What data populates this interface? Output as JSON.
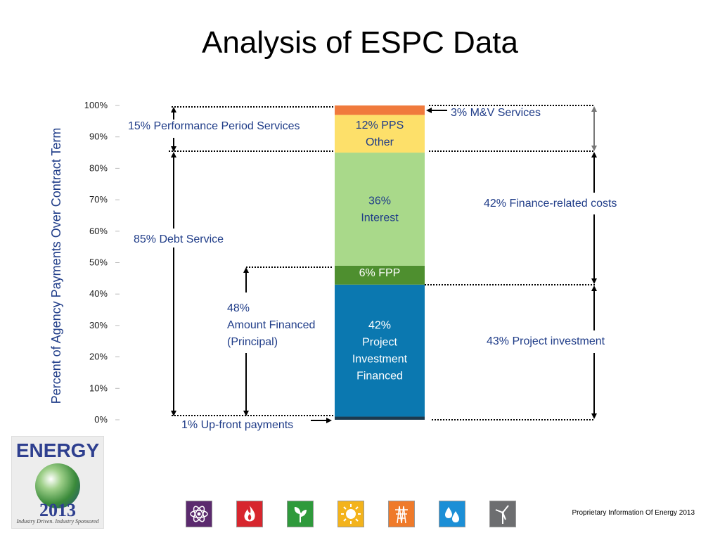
{
  "slide": {
    "title": "Analysis of ESPC Data",
    "footer": "Proprietary Information Of Energy 2013"
  },
  "logo": {
    "top_text": "ENERGY",
    "year_text": "2013",
    "tagline": "Industry Driven. Industry Sponsored"
  },
  "icons": [
    "atom-icon",
    "flame-icon",
    "leaf-icon",
    "sun-icon",
    "power-grid-icon",
    "water-drops-icon",
    "wind-turbine-icon"
  ],
  "chart_data": {
    "type": "bar",
    "stacked": true,
    "ylabel": "Percent of Agency Payments Over Contract Term",
    "ylim": [
      0,
      100
    ],
    "yticks": [
      "0%",
      "10%",
      "20%",
      "30%",
      "40%",
      "50%",
      "60%",
      "70%",
      "80%",
      "90%",
      "100%"
    ],
    "segments": [
      {
        "name": "Up-front payments",
        "value": 1,
        "label": "",
        "color": "#1c3a4f",
        "text_color": "#ffffff"
      },
      {
        "name": "Project Investment Financed",
        "value": 42,
        "label": "42%\nProject\nInvestment\nFinanced",
        "color": "#0b78b0",
        "text_color": "#ffffff"
      },
      {
        "name": "FPP",
        "value": 6,
        "label": "6% FPP",
        "color": "#4e8f2f",
        "text_color": "#ffffff"
      },
      {
        "name": "Interest",
        "value": 36,
        "label": "36%\nInterest",
        "color": "#a9d98a",
        "text_color": "#1f3c88"
      },
      {
        "name": "PPS Other",
        "value": 12,
        "label": "12% PPS\nOther",
        "color": "#fde06a",
        "text_color": "#1f3c88"
      },
      {
        "name": "M&V Services",
        "value": 3,
        "label": "",
        "color": "#f07a3c",
        "text_color": "#ffffff"
      }
    ],
    "annotations": {
      "performance_period": "15% Performance Period Services",
      "debt_service": "85% Debt Service",
      "amount_financed": "48%\nAmount Financed\n(Principal)",
      "upfront": "1% Up-front payments",
      "mv_services": "3% M&V Services",
      "finance_related": "42% Finance-related costs",
      "project_investment": "43% Project investment"
    }
  },
  "colors": {
    "annotation_text": "#1f3c88",
    "axis_label": "#1f3c88"
  }
}
